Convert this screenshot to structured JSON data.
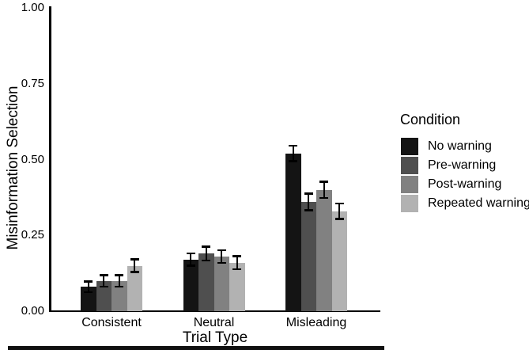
{
  "figure": {
    "ylabel": "Misinformation Selection",
    "xlabel": "Trial Type",
    "legend_title": "Condition"
  },
  "chart_data": {
    "type": "bar",
    "title": "",
    "xlabel": "Trial Type",
    "ylabel": "Misinformation Selection",
    "categories": [
      "Consistent",
      "Neutral",
      "Misleading"
    ],
    "series": [
      {
        "name": "No warning",
        "color": "#141414",
        "values": [
          0.08,
          0.17,
          0.52
        ],
        "errors": [
          0.018,
          0.021,
          0.026
        ]
      },
      {
        "name": "Pre-warning",
        "color": "#4f4f4f",
        "values": [
          0.1,
          0.19,
          0.36
        ],
        "errors": [
          0.02,
          0.024,
          0.028
        ]
      },
      {
        "name": "Post-warning",
        "color": "#818181",
        "values": [
          0.1,
          0.18,
          0.4
        ],
        "errors": [
          0.02,
          0.022,
          0.027
        ]
      },
      {
        "name": "Repeated warning",
        "color": "#b2b2b2",
        "values": [
          0.15,
          0.16,
          0.33
        ],
        "errors": [
          0.022,
          0.022,
          0.026
        ]
      }
    ],
    "ylim": [
      0,
      1
    ],
    "yticks": [
      0,
      0.25,
      0.5,
      0.75,
      1
    ],
    "ytick_labels": [
      "0.00",
      "0.25",
      "0.50",
      "0.75",
      "1.00"
    ],
    "legend_title": "Condition",
    "legend_position": "right",
    "grid": false,
    "error_bars": true
  }
}
